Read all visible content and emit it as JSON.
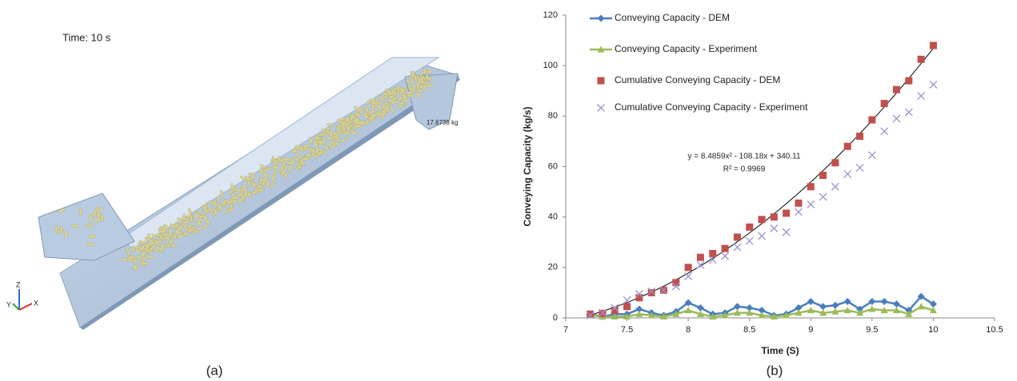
{
  "panel_a": {
    "time_label": "Time: 10 s",
    "mass_label": "17.6738 kg",
    "axis_z": "Z",
    "axis_y": "Y",
    "axis_x": "X",
    "caption": "(a)"
  },
  "caption_b": "(b)",
  "chart_data": {
    "type": "scatter",
    "x_label": "Time (S)",
    "y_label": "Conveying Capacity  (kg/s)",
    "xlim": [
      7,
      10.5
    ],
    "xticks": [
      7,
      7.5,
      8,
      8.5,
      9,
      9.5,
      10,
      10.5
    ],
    "ylim": [
      0,
      120
    ],
    "yticks": [
      0,
      20,
      40,
      60,
      80,
      100,
      120
    ],
    "grid": false,
    "legend": "top-left",
    "x": [
      7.2,
      7.3,
      7.4,
      7.5,
      7.6,
      7.7,
      7.8,
      7.9,
      8.0,
      8.1,
      8.2,
      8.3,
      8.4,
      8.5,
      8.6,
      8.7,
      8.8,
      8.9,
      9.0,
      9.1,
      9.2,
      9.3,
      9.4,
      9.5,
      9.6,
      9.7,
      9.8,
      9.9,
      10.0
    ],
    "series": [
      {
        "name": "Conveying Capacity - DEM",
        "color": "#4a7ebb",
        "marker": "diamond",
        "line": true,
        "values": [
          1.5,
          0.5,
          1.5,
          1.5,
          3.5,
          2,
          1,
          2.5,
          6,
          4,
          1.5,
          2,
          4.5,
          4,
          3,
          1,
          1.5,
          4,
          6.5,
          4.5,
          5,
          6.5,
          3.5,
          6.5,
          6.5,
          5.5,
          3,
          8.5,
          5.5
        ]
      },
      {
        "name": "Conveying Capacity - Experiment",
        "color": "#9bbb59",
        "marker": "triangle",
        "line": true,
        "values": [
          1,
          0.5,
          0.5,
          0.5,
          1.5,
          1,
          0.5,
          1.5,
          3,
          1.5,
          0.5,
          1,
          2,
          2,
          1,
          0.5,
          1,
          2,
          3,
          2,
          2.5,
          3,
          2,
          3.5,
          3,
          3,
          1.5,
          4.5,
          3
        ]
      },
      {
        "name": "Cumulative Conveying Capacity - DEM",
        "color": "#c0504d",
        "marker": "square",
        "line": false,
        "values": [
          1.5,
          1.8,
          3,
          4.5,
          8,
          10,
          11,
          14,
          20,
          24,
          25.5,
          27.5,
          32,
          36,
          39,
          40,
          41.5,
          45.5,
          52,
          56.5,
          61.5,
          68,
          72,
          78.5,
          85,
          90.5,
          94,
          102.5,
          108
        ]
      },
      {
        "name": "Cumulative Conveying Capacity - Experiment",
        "color": "#9d93d0",
        "marker": "x",
        "line": false,
        "values": [
          1,
          2,
          4,
          7,
          9.5,
          10.5,
          11,
          12.5,
          16.5,
          21,
          23,
          24.5,
          28,
          30.5,
          32.5,
          35.5,
          34,
          42,
          45,
          48,
          52,
          57,
          59.5,
          64.5,
          74,
          79,
          81.5,
          88,
          92.5
        ]
      }
    ],
    "trendline": {
      "coefficients": [
        8.4859,
        -108.18,
        340.11
      ],
      "color": "#000000",
      "xrange": [
        7.2,
        10.0
      ]
    },
    "annotations": [
      "y = 8.4859x² - 108.18x + 340.11",
      "R² = 0.9969"
    ]
  }
}
